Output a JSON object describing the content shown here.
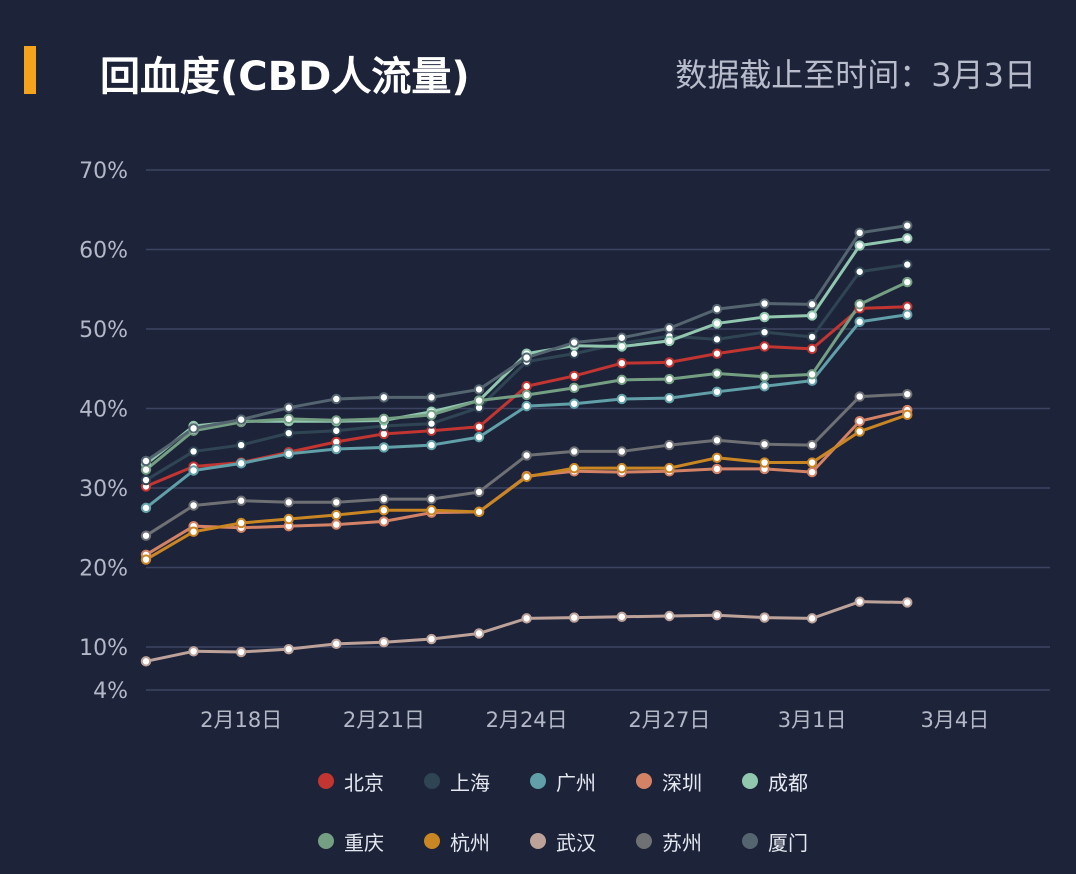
{
  "header": {
    "title": "回血度(CBD人流量)",
    "cutoff": "数据截止至时间：3月3日"
  },
  "chart_data": {
    "type": "line",
    "title": "回血度(CBD人流量)",
    "xlabel": "",
    "ylabel": "",
    "grid": true,
    "legend_placement": "bottom",
    "x": [
      "2月16日",
      "2月17日",
      "2月18日",
      "2月19日",
      "2月20日",
      "2月21日",
      "2月22日",
      "2月23日",
      "2月24日",
      "2月25日",
      "2月26日",
      "2月27日",
      "2月28日",
      "2月29日",
      "3月1日",
      "3月2日",
      "3月3日"
    ],
    "x_ticks": [
      "2月18日",
      "2月21日",
      "2月24日",
      "2月27日",
      "3月1日",
      "3月4日"
    ],
    "x_tick_day_index": [
      2,
      5,
      8,
      11,
      14,
      17
    ],
    "xlim_day_index": [
      0,
      19
    ],
    "y_ticks": [
      4,
      10,
      20,
      30,
      40,
      50,
      60,
      70
    ],
    "y_tick_labels": [
      "4%",
      "10%",
      "20%",
      "30%",
      "40%",
      "50%",
      "60%",
      "70%"
    ],
    "ylim": [
      4,
      70
    ],
    "series": [
      {
        "name": "北京",
        "color": "#c23531",
        "values": [
          30.2,
          32.7,
          33.2,
          34.5,
          35.8,
          36.8,
          37.2,
          37.7,
          42.8,
          44.1,
          45.7,
          45.8,
          46.9,
          47.8,
          47.5,
          52.6,
          52.8
        ]
      },
      {
        "name": "上海",
        "color": "#2f4554",
        "values": [
          31.0,
          34.6,
          35.4,
          36.9,
          37.2,
          37.8,
          38.1,
          40.1,
          45.9,
          46.9,
          48.2,
          49.1,
          48.7,
          49.6,
          49.0,
          57.2,
          58.1
        ]
      },
      {
        "name": "广州",
        "color": "#61a0a8",
        "values": [
          27.5,
          32.2,
          33.1,
          34.3,
          34.9,
          35.1,
          35.4,
          36.4,
          40.3,
          40.6,
          41.2,
          41.3,
          42.1,
          42.8,
          43.5,
          50.9,
          51.8
        ]
      },
      {
        "name": "深圳",
        "color": "#d48265",
        "values": [
          21.6,
          25.2,
          25.0,
          25.2,
          25.4,
          25.8,
          26.9,
          27.0,
          31.5,
          32.1,
          32.0,
          32.1,
          32.4,
          32.4,
          32.0,
          38.4,
          39.8
        ]
      },
      {
        "name": "成都",
        "color": "#91c7ae",
        "values": [
          33.0,
          37.8,
          38.4,
          38.4,
          38.4,
          38.5,
          39.6,
          41.0,
          46.9,
          47.9,
          47.8,
          48.5,
          50.7,
          51.5,
          51.7,
          60.5,
          61.4
        ]
      },
      {
        "name": "重庆",
        "color": "#749f83",
        "values": [
          32.3,
          37.2,
          38.3,
          38.7,
          38.5,
          38.7,
          39.2,
          41.0,
          41.7,
          42.6,
          43.6,
          43.7,
          44.4,
          44.0,
          44.3,
          53.1,
          55.9
        ]
      },
      {
        "name": "杭州",
        "color": "#ca8622",
        "values": [
          21.0,
          24.5,
          25.6,
          26.1,
          26.6,
          27.2,
          27.2,
          27.0,
          31.4,
          32.5,
          32.5,
          32.5,
          33.8,
          33.2,
          33.2,
          37.1,
          39.2
        ]
      },
      {
        "name": "武汉",
        "color": "#bda29a",
        "values": [
          8.0,
          9.4,
          9.3,
          9.7,
          10.4,
          10.6,
          11.0,
          11.7,
          13.6,
          13.7,
          13.8,
          13.9,
          14.0,
          13.7,
          13.6,
          15.7,
          15.6
        ]
      },
      {
        "name": "苏州",
        "color": "#6e7074",
        "values": [
          24.0,
          27.8,
          28.4,
          28.2,
          28.2,
          28.6,
          28.6,
          29.5,
          34.1,
          34.6,
          34.6,
          35.4,
          36.0,
          35.5,
          35.4,
          41.5,
          41.8
        ]
      },
      {
        "name": "厦门",
        "color": "#546570",
        "values": [
          33.4,
          37.5,
          38.6,
          40.1,
          41.2,
          41.4,
          41.4,
          42.4,
          46.4,
          48.3,
          48.9,
          50.1,
          52.5,
          53.2,
          53.1,
          62.1,
          63.0
        ]
      }
    ]
  }
}
